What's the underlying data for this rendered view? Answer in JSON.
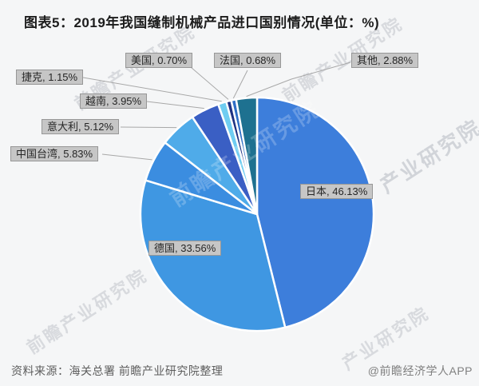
{
  "title": "图表5：2019年我国缝制机械产品进口国别情况(单位：%)",
  "chart_data": {
    "type": "pie",
    "title": "2019年我国缝制机械产品进口国别情况",
    "unit": "%",
    "start_angle_deg": 0,
    "direction": "clockwise",
    "label_format": "{label}, {value}%",
    "legend_position": "none",
    "slices": [
      {
        "label": "日本",
        "value": 46.13,
        "value_label": "46.13",
        "color": "#3d7edb"
      },
      {
        "label": "德国",
        "value": 33.56,
        "value_label": "33.56",
        "color": "#3f97e2"
      },
      {
        "label": "中国台湾",
        "value": 5.83,
        "value_label": "5.83",
        "color": "#3b8de0"
      },
      {
        "label": "意大利",
        "value": 5.12,
        "value_label": "5.12",
        "color": "#4fabe9"
      },
      {
        "label": "越南",
        "value": 3.95,
        "value_label": "3.95",
        "color": "#3a5fc4"
      },
      {
        "label": "捷克",
        "value": 1.15,
        "value_label": "1.15",
        "color": "#6fcdf1"
      },
      {
        "label": "美国",
        "value": 0.7,
        "value_label": "0.70",
        "color": "#1e3282"
      },
      {
        "label": "法国",
        "value": 0.68,
        "value_label": "0.68",
        "color": "#2e6fc6"
      },
      {
        "label": "其他",
        "value": 2.88,
        "value_label": "2.88",
        "color": "#1e7190"
      }
    ]
  },
  "watermark": {
    "text": "前瞻产业研究院",
    "short": "产业研究院"
  },
  "footer": {
    "source": "资料来源：海关总署 前瞻产业研究院整理",
    "credit": "@前瞻经济学人APP"
  }
}
